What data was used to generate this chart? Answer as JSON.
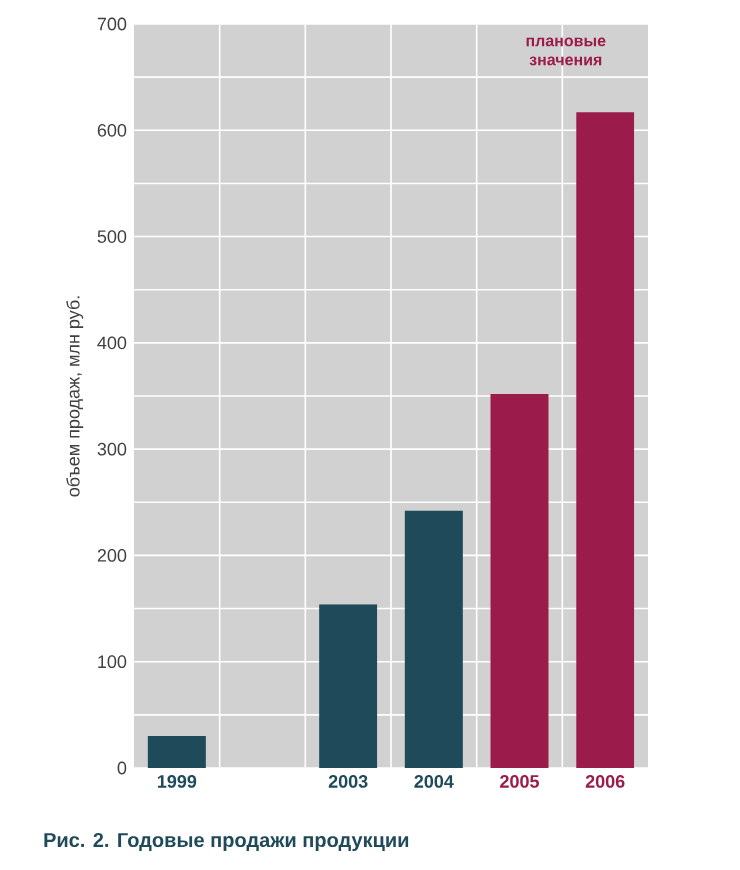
{
  "chart_data": {
    "type": "bar",
    "title": "Рис. 2. Годовые продажи продукции",
    "ylabel": "объем продаж, млн руб.",
    "categories": [
      "1999",
      null,
      "2003",
      "2004",
      "2005",
      "2006"
    ],
    "values": [
      30,
      null,
      154,
      242,
      352,
      617
    ],
    "colors": [
      "#1f4a5a",
      null,
      "#1f4a5a",
      "#1f4a5a",
      "#9b1b4a",
      "#9b1b4a"
    ],
    "ylim": [
      0,
      700
    ],
    "yticks": [
      0,
      {
        "value": 50,
        "label": null
      },
      100,
      {
        "value": 150,
        "label": null
      },
      200,
      {
        "value": 250,
        "label": null
      },
      300,
      {
        "value": 350,
        "label": null
      },
      400,
      {
        "value": 450,
        "label": null
      },
      500,
      {
        "value": 550,
        "label": null
      },
      600,
      {
        "value": 650,
        "label": null
      },
      700
    ],
    "grid": true,
    "annotations": [
      "плановые значения"
    ]
  }
}
